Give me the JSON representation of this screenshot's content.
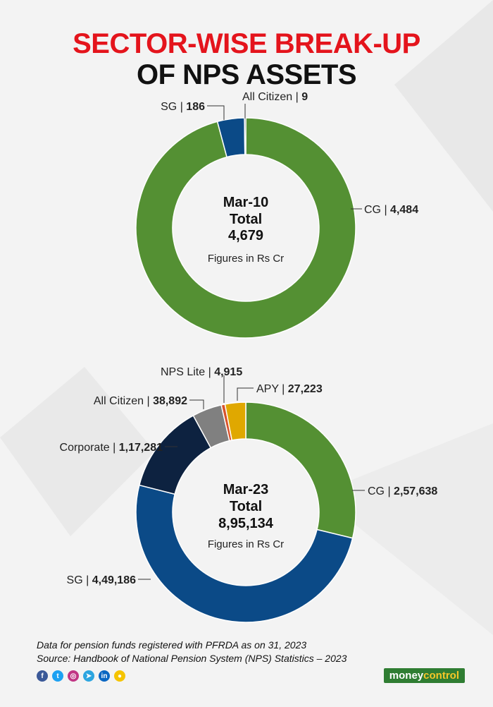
{
  "header": {
    "title_line1": "SECTOR-WISE BREAK-UP",
    "title_line2": "OF NPS ASSETS"
  },
  "chart_data": [
    {
      "type": "pie",
      "variant": "donut",
      "center": {
        "period": "Mar-10",
        "total_label": "Total",
        "total_value": "4,679",
        "unit_note": "Figures in Rs Cr"
      },
      "slices": [
        {
          "name": "CG",
          "label": "CG",
          "display": "4,484",
          "value": 4484,
          "color": "#549033"
        },
        {
          "name": "SG",
          "label": "SG",
          "display": "186",
          "value": 186,
          "color": "#0b4a87"
        },
        {
          "name": "All Citizen",
          "label": "All Citizen",
          "display": "9",
          "value": 9,
          "color": "#1e1e1e"
        }
      ]
    },
    {
      "type": "pie",
      "variant": "donut",
      "center": {
        "period": "Mar-23",
        "total_label": "Total",
        "total_value": "8,95,134",
        "unit_note": "Figures in Rs Cr"
      },
      "slices": [
        {
          "name": "CG",
          "label": "CG",
          "display": "2,57,638",
          "value": 257638,
          "color": "#549033"
        },
        {
          "name": "SG",
          "label": "SG",
          "display": "4,49,186",
          "value": 449186,
          "color": "#0b4a87"
        },
        {
          "name": "Corporate",
          "label": "Corporate",
          "display": "1,17,281",
          "value": 117281,
          "color": "#0d2240"
        },
        {
          "name": "All Citizen",
          "label": "All Citizen",
          "display": "38,892",
          "value": 38892,
          "color": "#808080"
        },
        {
          "name": "NPS Lite",
          "label": "NPS Lite",
          "display": "4,915",
          "value": 4915,
          "color": "#d9532b"
        },
        {
          "name": "APY",
          "label": "APY",
          "display": "27,223",
          "value": 27223,
          "color": "#e0a800"
        }
      ]
    }
  ],
  "footer": {
    "note": "Data for pension funds registered with PFRDA as on 31, 2023",
    "source": "Source: Handbook of National Pension System (NPS) Statistics – 2023",
    "social_icons": [
      "facebook-icon",
      "twitter-icon",
      "instagram-icon",
      "telegram-icon",
      "linkedin-icon",
      "koo-icon"
    ],
    "social_colors": [
      "#3b5998",
      "#1da1f2",
      "#c13584",
      "#2ca5e0",
      "#0a66c2",
      "#f5c400"
    ],
    "logo_part1": "money",
    "logo_part2": "control"
  }
}
